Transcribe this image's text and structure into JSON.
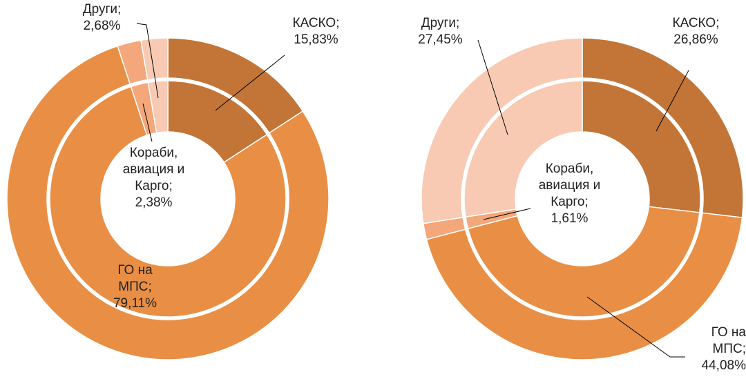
{
  "chart_data": [
    {
      "type": "doughnut",
      "categories": [
        "КАСКО;",
        "ГО на МПС;",
        "Кораби, авиация и Карго;",
        "Други;"
      ],
      "values": [
        15.83,
        79.11,
        2.38,
        2.68
      ],
      "value_labels": [
        "15,83%",
        "79,11%",
        "2,38%",
        "2,68%"
      ],
      "colors": [
        "#c27537",
        "#e98f45",
        "#f4a77a",
        "#f8cab3"
      ]
    },
    {
      "type": "doughnut",
      "categories": [
        "КАСКО;",
        "ГО на МПС;",
        "Кораби, авиация и Карго;",
        "Други;"
      ],
      "values": [
        26.86,
        44.08,
        1.61,
        27.45
      ],
      "value_labels": [
        "26,86%",
        "44,08%",
        "1,61%",
        "27,45%"
      ],
      "colors": [
        "#c27537",
        "#e98f45",
        "#f4a77a",
        "#f8cab3"
      ]
    }
  ]
}
